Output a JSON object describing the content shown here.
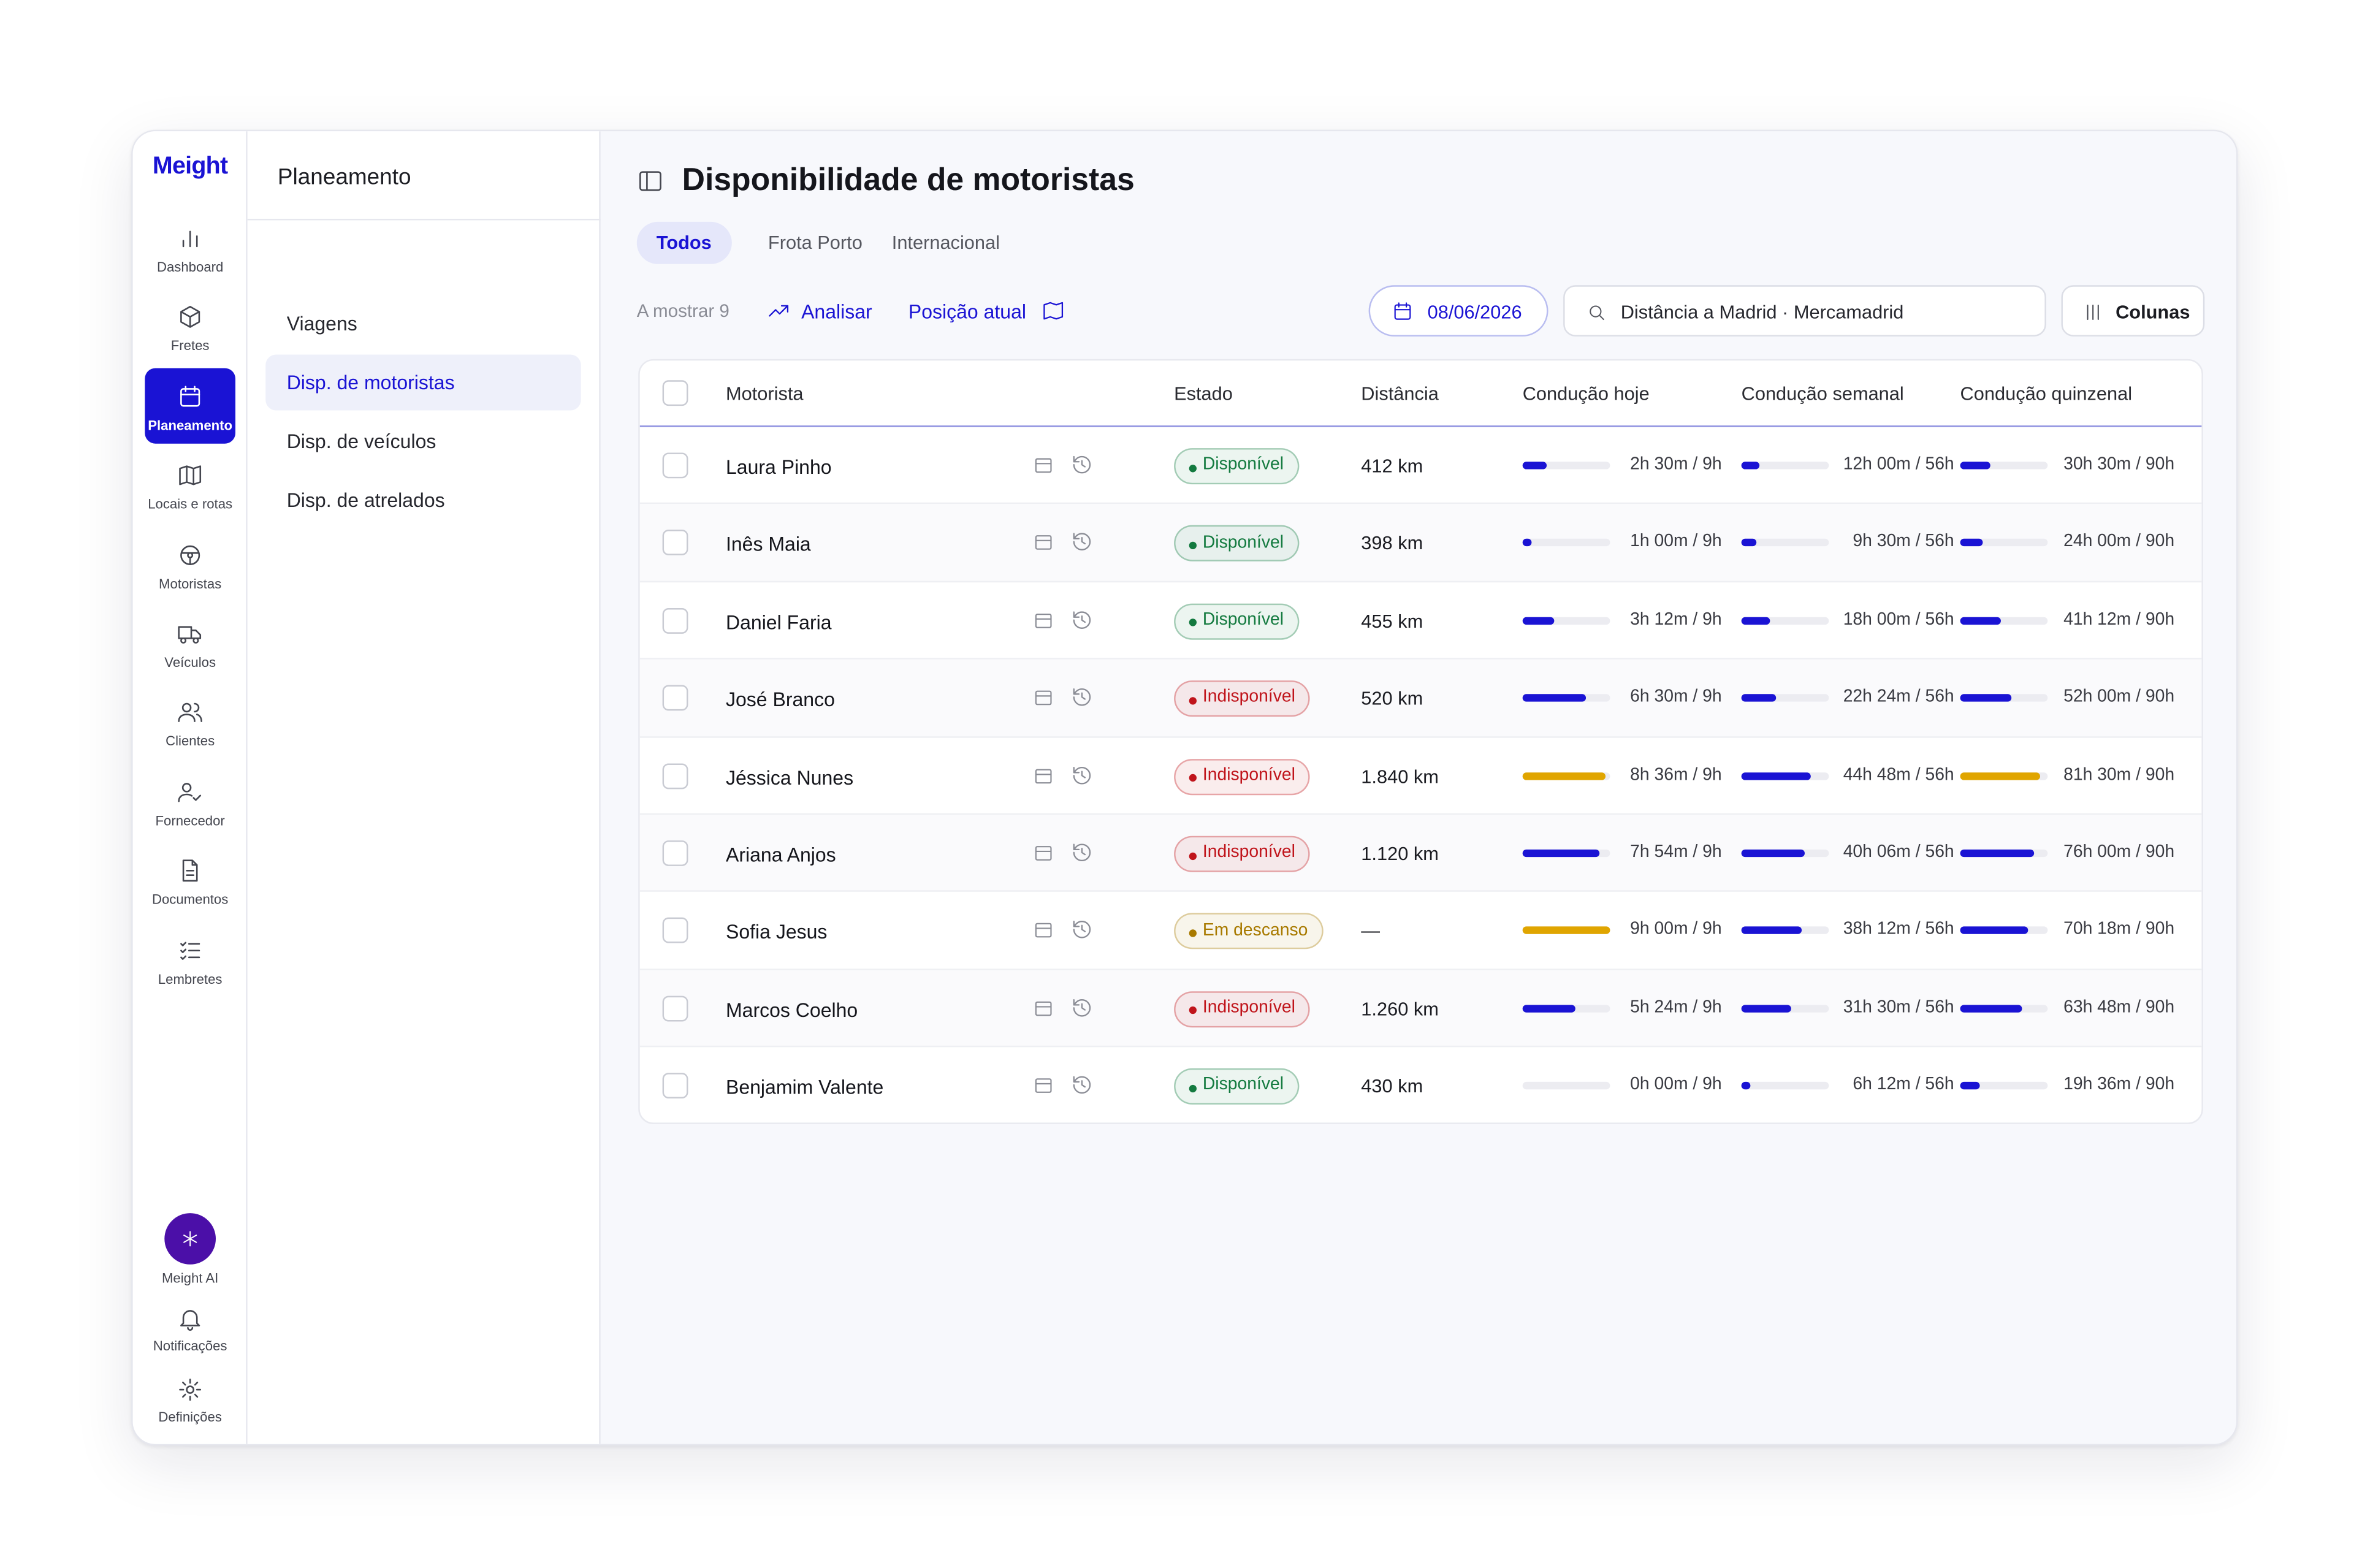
{
  "brand": "Meight",
  "nav": {
    "items": [
      "Dashboard",
      "Fretes",
      "Planeamento",
      "Locais e rotas",
      "Motoristas",
      "Veículos",
      "Clientes",
      "Fornecedor",
      "Documentos",
      "Lembretes"
    ],
    "active": 2,
    "bottom": [
      "Meight AI",
      "Notificações",
      "Definições"
    ]
  },
  "sidebar": {
    "title": "Planeamento",
    "items": [
      "Viagens",
      "Disp. de motoristas",
      "Disp. de veículos",
      "Disp. de atrelados"
    ],
    "active": 1
  },
  "header": {
    "title": "Disponibilidade de motoristas"
  },
  "tabs": {
    "items": [
      "Todos",
      "Frota Porto",
      "Internacional"
    ],
    "active": 0
  },
  "toolbar": {
    "count": "A mostrar 9",
    "analyze": "Analisar",
    "position": "Posição atual",
    "date": "08/06/2026",
    "search": "Distância a Madrid · Mercamadrid",
    "columns": "Colunas"
  },
  "colors": {
    "accent": "#1a13d4",
    "bar": "#1a13d4",
    "bar_warn": "#e0a500",
    "ai": "#4b0fa8"
  },
  "table": {
    "columns": [
      "Motorista",
      "Estado",
      "Distância",
      "Condução hoje",
      "Condução semanal",
      "Condução quinzenal"
    ],
    "rows": [
      {
        "name": "Laura Pinho",
        "status": "Disponível",
        "status_color": "#137a3f",
        "distance": "412 km",
        "today": "2h 30m / 9h",
        "week": "12h 00m / 56h",
        "fortnight": "30h 30m / 90h"
      },
      {
        "name": "Inês Maia",
        "status": "Disponível",
        "status_color": "#137a3f",
        "distance": "398 km",
        "today": "1h 00m / 9h",
        "week": "9h 30m / 56h",
        "fortnight": "24h 00m / 90h"
      },
      {
        "name": "Daniel Faria",
        "status": "Disponível",
        "status_color": "#137a3f",
        "distance": "455 km",
        "today": "3h 12m / 9h",
        "week": "18h 00m / 56h",
        "fortnight": "41h 12m / 90h"
      },
      {
        "name": "José Branco",
        "status": "Indisponível",
        "status_color": "#c0141b",
        "distance": "520 km",
        "today": "6h 30m / 9h",
        "week": "22h 24m / 56h",
        "fortnight": "52h 00m / 90h"
      },
      {
        "name": "Jéssica Nunes",
        "status": "Indisponível",
        "status_color": "#c0141b",
        "distance": "1.840 km",
        "today": "8h 36m / 9h",
        "week": "44h 48m / 56h",
        "fortnight": "81h 30m / 90h"
      },
      {
        "name": "Ariana Anjos",
        "status": "Indisponível",
        "status_color": "#c0141b",
        "distance": "1.120 km",
        "today": "7h 54m / 9h",
        "week": "40h 06m / 56h",
        "fortnight": "76h 00m / 90h"
      },
      {
        "name": "Sofia Jesus",
        "status": "Em descanso",
        "status_color": "#a87a00",
        "distance": "—",
        "today": "9h 00m / 9h",
        "week": "38h 12m / 56h",
        "fortnight": "70h 18m / 90h"
      },
      {
        "name": "Marcos Coelho",
        "status": "Indisponível",
        "status_color": "#c0141b",
        "distance": "1.260 km",
        "today": "5h 24m / 9h",
        "week": "31h 30m / 56h",
        "fortnight": "63h 48m / 90h"
      },
      {
        "name": "Benjamim Valente",
        "status": "Disponível",
        "status_color": "#137a3f",
        "distance": "430 km",
        "today": "0h 00m / 9h",
        "week": "6h 12m / 56h",
        "fortnight": "19h 36m / 90h"
      }
    ]
  }
}
